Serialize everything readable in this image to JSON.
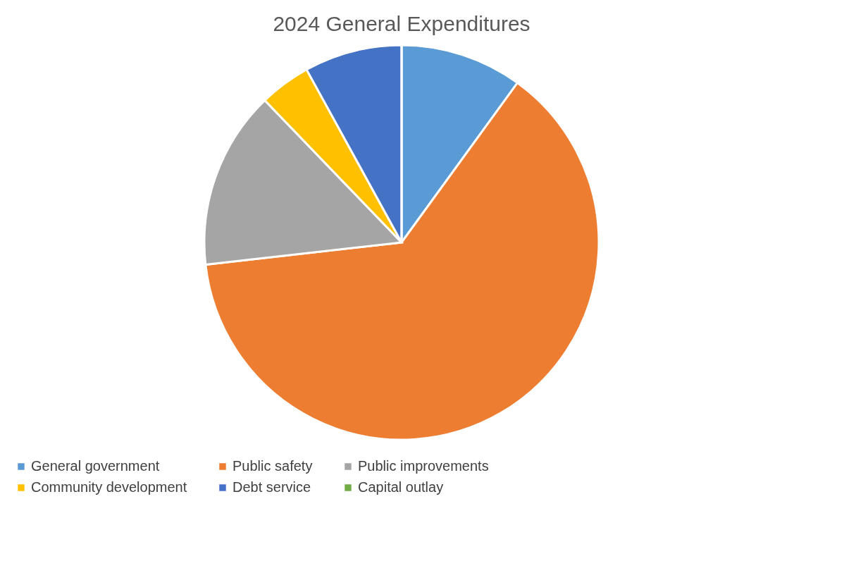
{
  "chart_data": {
    "type": "pie",
    "title": "2024 General Expenditures",
    "categories": [
      "General government",
      "Public safety",
      "Public improvements",
      "Community development",
      "Debt service",
      "Capital outlay"
    ],
    "values": [
      10.0,
      63.2,
      14.6,
      4.2,
      8.0,
      0
    ],
    "colors": [
      "#5b9bd5",
      "#ed7d31",
      "#a5a5a5",
      "#ffc000",
      "#4472c4",
      "#70ad47"
    ],
    "legend": "bottom"
  }
}
